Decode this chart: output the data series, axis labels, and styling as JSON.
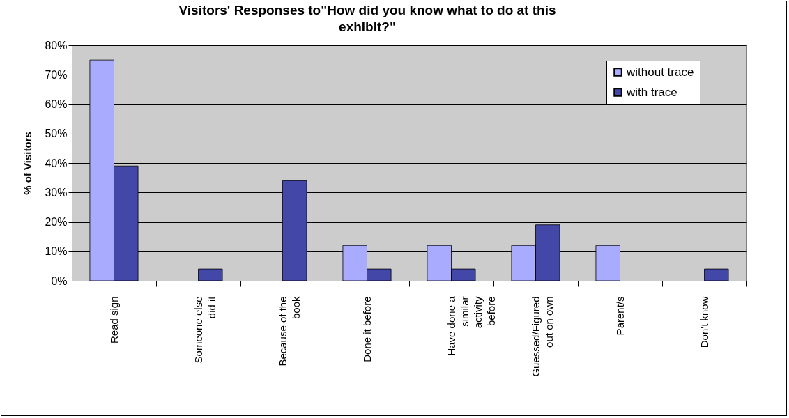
{
  "chart_data": {
    "type": "bar",
    "title": "Visitors' Responses to\"How did you know what to do at this exhibit?\"",
    "ylabel": "% of Visitors",
    "categories": [
      "Read sign",
      "Someone else did it",
      "Because of the book",
      "Done it before",
      "Have done a similar activity before",
      "Guessed/Figured out on own",
      "Parent/s",
      "Don't know"
    ],
    "series": [
      {
        "name": "without trace",
        "color": "#a9abff",
        "values": [
          75,
          null,
          null,
          12,
          12,
          12,
          12,
          null
        ]
      },
      {
        "name": "with trace",
        "color": "#4348a8",
        "values": [
          39,
          4,
          34,
          4,
          4,
          19,
          null,
          4
        ]
      }
    ],
    "ylim": [
      0,
      80
    ],
    "yticks": [
      {
        "value": 0,
        "label": "0%"
      },
      {
        "value": 10,
        "label": "10%"
      },
      {
        "value": 20,
        "label": "20%"
      },
      {
        "value": 30,
        "label": "30%"
      },
      {
        "value": 40,
        "label": "40%"
      },
      {
        "value": 50,
        "label": "50%"
      },
      {
        "value": 60,
        "label": "60%"
      },
      {
        "value": 70,
        "label": "70%"
      },
      {
        "value": 80,
        "label": "80%"
      }
    ],
    "grid": "y",
    "legend": "top right"
  }
}
